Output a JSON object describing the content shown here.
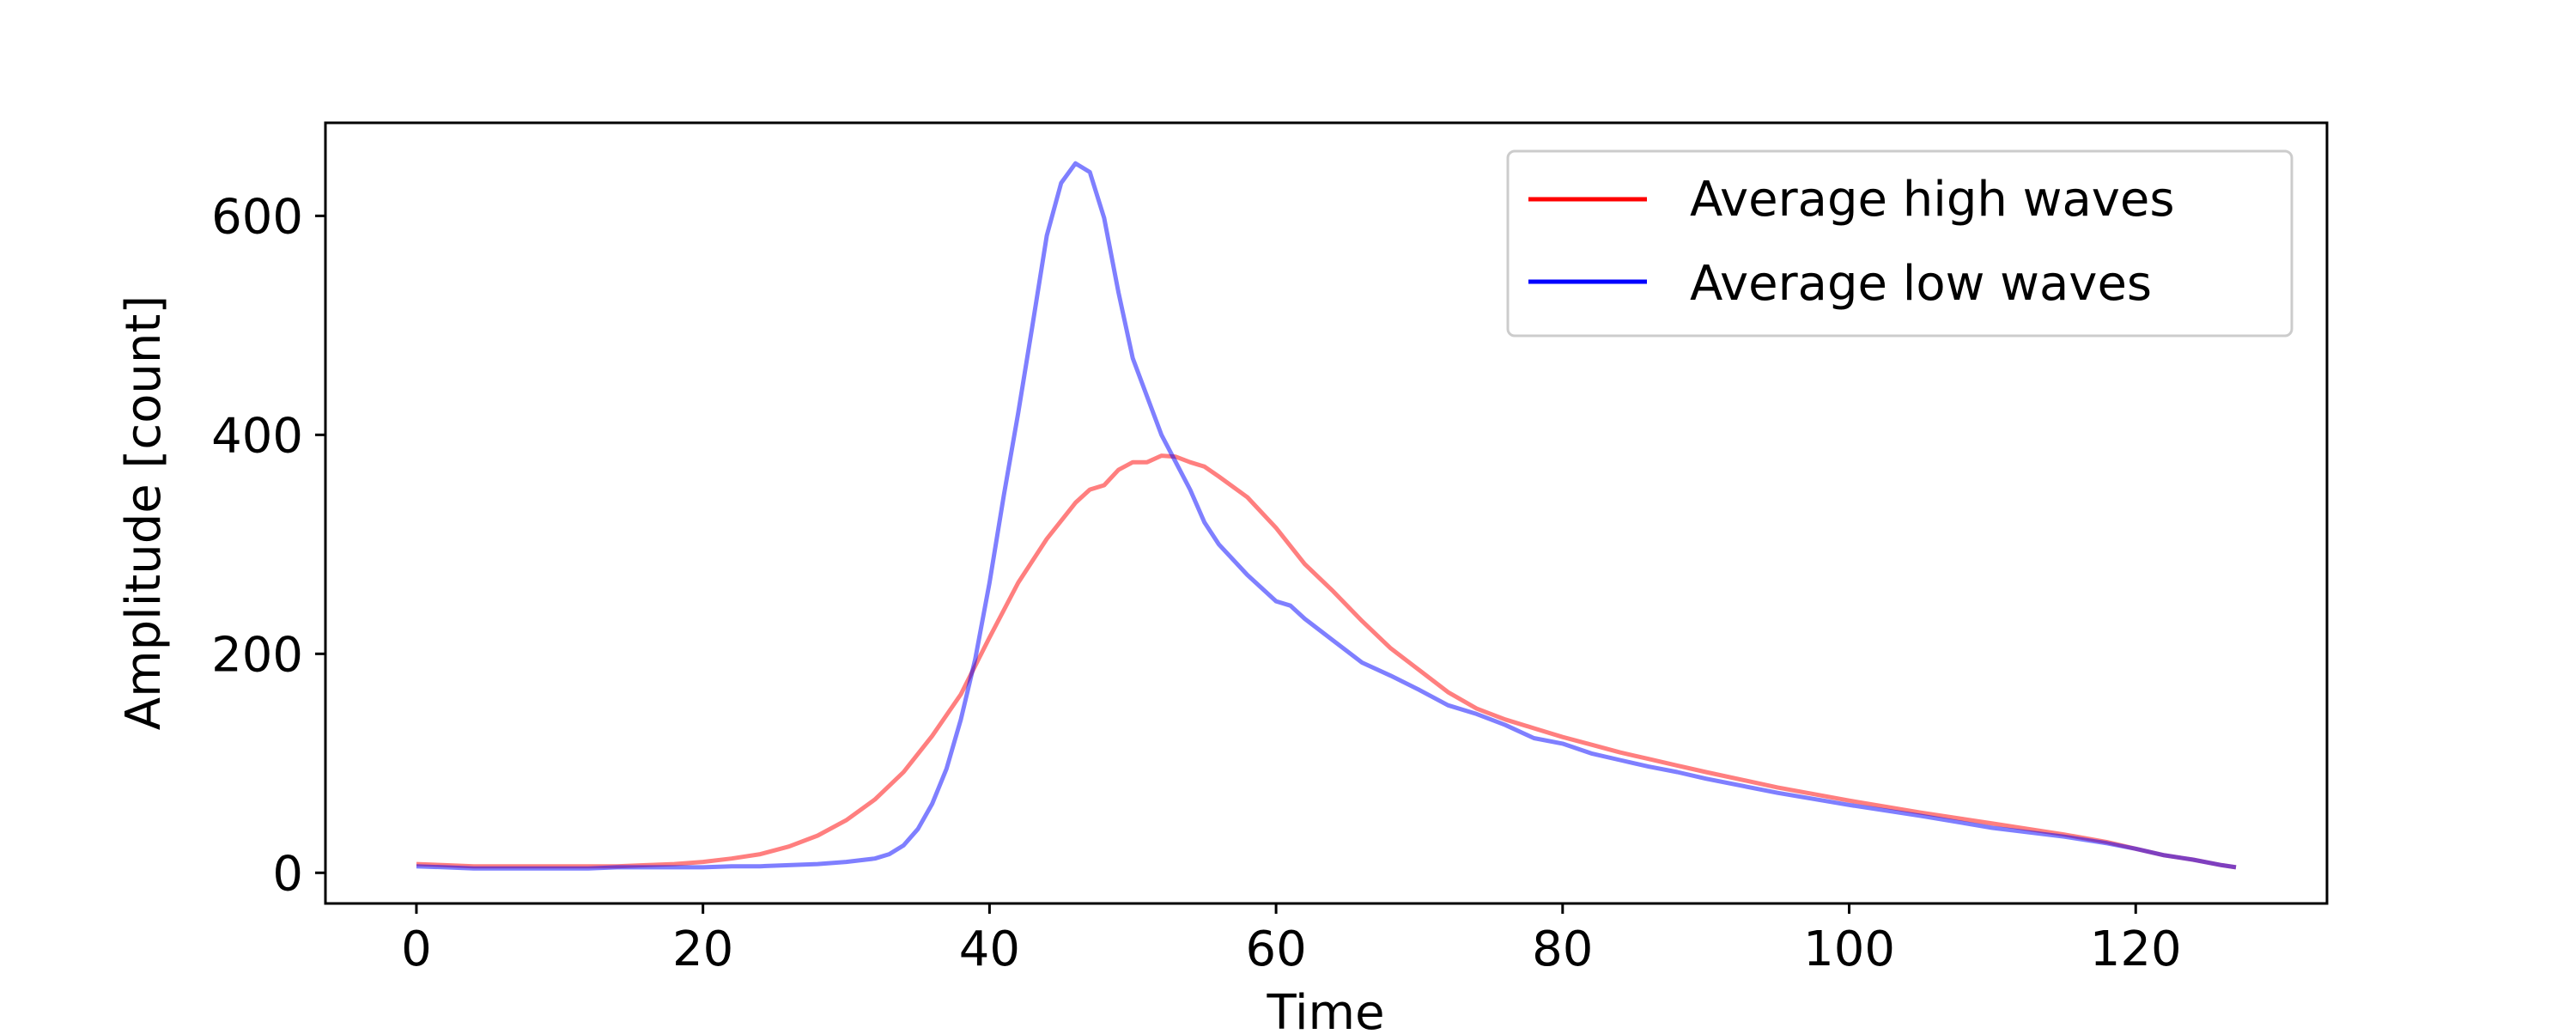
{
  "chart_data": {
    "type": "line",
    "xlabel": "Time",
    "ylabel": "Amplitude [count]",
    "xlim": [
      -6.35,
      133.35
    ],
    "ylim": [
      -28,
      685
    ],
    "xticks": [
      0,
      20,
      40,
      60,
      80,
      100,
      120
    ],
    "yticks": [
      0,
      200,
      400,
      600
    ],
    "grid": false,
    "legend_position": "top-right",
    "legend": [
      "Average high waves",
      "Average low waves"
    ],
    "series": [
      {
        "name": "Average high waves",
        "color": "#ff0000",
        "alpha": 0.5,
        "x": [
          0,
          2,
          4,
          6,
          8,
          10,
          12,
          14,
          16,
          18,
          20,
          22,
          24,
          26,
          28,
          30,
          32,
          34,
          36,
          38,
          40,
          42,
          44,
          46,
          47,
          48,
          49,
          50,
          51,
          52,
          53,
          54,
          55,
          56,
          58,
          60,
          62,
          64,
          66,
          68,
          70,
          72,
          74,
          76,
          78,
          80,
          82,
          84,
          86,
          88,
          90,
          95,
          100,
          105,
          110,
          115,
          118,
          120,
          122,
          124,
          126,
          127
        ],
        "y": [
          8,
          7,
          6,
          6,
          6,
          6,
          6,
          6,
          7,
          8,
          10,
          13,
          17,
          24,
          34,
          48,
          67,
          92,
          125,
          163,
          215,
          265,
          305,
          338,
          350,
          354,
          368,
          375,
          375,
          381,
          380,
          375,
          371,
          362,
          343,
          315,
          282,
          257,
          230,
          205,
          185,
          165,
          150,
          140,
          132,
          124,
          117,
          110,
          104,
          98,
          92,
          78,
          66,
          55,
          45,
          35,
          28,
          22,
          16,
          12,
          7,
          5
        ]
      },
      {
        "name": "Average low waves",
        "color": "#0000ff",
        "alpha": 0.5,
        "x": [
          0,
          2,
          4,
          6,
          8,
          10,
          12,
          14,
          16,
          18,
          20,
          22,
          24,
          26,
          28,
          30,
          32,
          33,
          34,
          35,
          36,
          37,
          38,
          39,
          40,
          41,
          42,
          43,
          44,
          45,
          46,
          47,
          48,
          49,
          50,
          51,
          52,
          53,
          54,
          55,
          56,
          58,
          60,
          61,
          62,
          64,
          66,
          68,
          70,
          72,
          74,
          76,
          78,
          80,
          82,
          84,
          86,
          88,
          90,
          95,
          100,
          105,
          110,
          115,
          118,
          120,
          122,
          124,
          126,
          127
        ],
        "y": [
          6,
          5,
          4,
          4,
          4,
          4,
          4,
          5,
          5,
          5,
          5,
          6,
          6,
          7,
          8,
          10,
          13,
          17,
          25,
          40,
          63,
          95,
          140,
          195,
          265,
          345,
          420,
          500,
          582,
          630,
          648,
          640,
          598,
          530,
          470,
          435,
          400,
          375,
          350,
          320,
          300,
          272,
          248,
          244,
          232,
          212,
          192,
          180,
          167,
          153,
          145,
          135,
          123,
          118,
          109,
          103,
          97,
          92,
          86,
          73,
          62,
          52,
          41,
          33,
          27,
          22,
          16,
          12,
          7,
          5
        ]
      }
    ]
  }
}
